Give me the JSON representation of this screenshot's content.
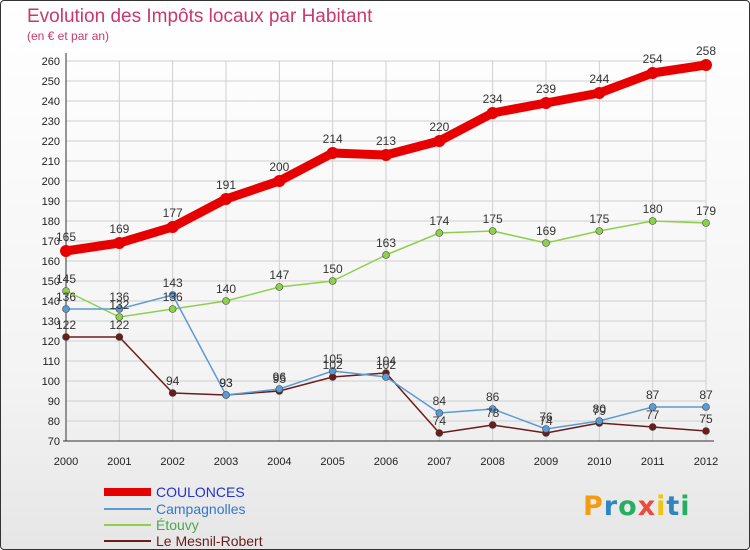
{
  "header": {
    "title": "Evolution des Impôts locaux par Habitant",
    "subtitle": "(en € et par an)"
  },
  "logo": {
    "letters": [
      "P",
      "r",
      "o",
      "x",
      "i",
      "t",
      "i"
    ]
  },
  "colors": {
    "title": "#c8386e",
    "grid": "#cfcfcf",
    "series": [
      "#e60000",
      "#5b9bd5",
      "#8ed04b",
      "#6b1c1c"
    ]
  },
  "chart_data": {
    "type": "line",
    "title": "Evolution des Impôts locaux par Habitant",
    "subtitle": "(en € et par an)",
    "xlabel": "",
    "ylabel": "",
    "x": [
      "2000",
      "2001",
      "2002",
      "2003",
      "2004",
      "2005",
      "2006",
      "2007",
      "2008",
      "2009",
      "2010",
      "2011",
      "2012"
    ],
    "ylim": [
      70,
      260
    ],
    "yticks": [
      70,
      80,
      90,
      100,
      110,
      120,
      130,
      140,
      150,
      160,
      170,
      180,
      190,
      200,
      210,
      220,
      230,
      240,
      250,
      260
    ],
    "grid": true,
    "legend": "bottom-left",
    "series": [
      {
        "name": "COULONCES",
        "values": [
          165,
          169,
          177,
          191,
          200,
          214,
          213,
          220,
          234,
          239,
          244,
          254,
          258
        ]
      },
      {
        "name": "Campagnolles",
        "values": [
          136,
          136,
          143,
          93,
          96,
          105,
          102,
          84,
          86,
          76,
          80,
          87,
          87
        ]
      },
      {
        "name": "Étouvy",
        "values": [
          145,
          132,
          136,
          140,
          147,
          150,
          163,
          174,
          175,
          169,
          175,
          180,
          179
        ]
      },
      {
        "name": "Le Mesnil-Robert",
        "values": [
          122,
          122,
          94,
          93,
          95,
          102,
          104,
          74,
          78,
          74,
          79,
          77,
          75
        ]
      }
    ]
  }
}
